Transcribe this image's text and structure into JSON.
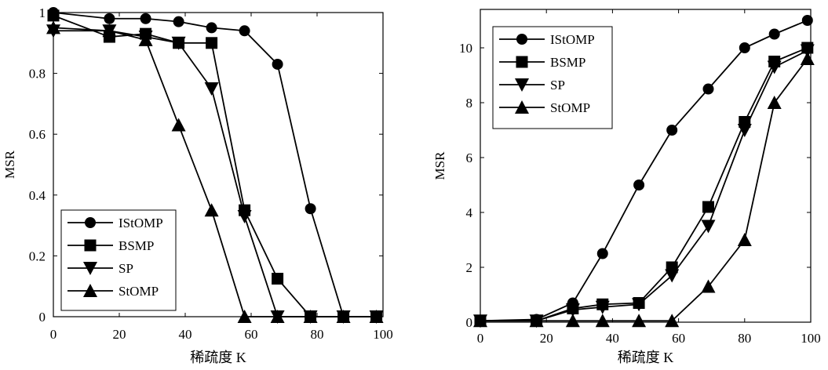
{
  "chart_data": [
    {
      "type": "line",
      "x": [
        0,
        17,
        28,
        38,
        48,
        58,
        68,
        78,
        88,
        98
      ],
      "xlabel": "稀疏度 K",
      "ylabel": "MSR",
      "xlim": [
        0,
        100
      ],
      "ylim": [
        0,
        1
      ],
      "xticks": [
        "0",
        "20",
        "40",
        "60",
        "80",
        "100"
      ],
      "yticks": [
        "0",
        "0.2",
        "0.4",
        "0.6",
        "0.8",
        "1"
      ],
      "grid": false,
      "legend_position": "bottom-left",
      "series": [
        {
          "name": "IStOMP",
          "marker": "circle",
          "values": [
            1.0,
            0.98,
            0.98,
            0.97,
            0.95,
            0.94,
            0.83,
            0.355,
            0,
            0
          ]
        },
        {
          "name": "BSMP",
          "marker": "square",
          "values": [
            0.99,
            0.92,
            0.93,
            0.9,
            0.9,
            0.35,
            0.125,
            0,
            0,
            0
          ]
        },
        {
          "name": "SP",
          "marker": "triangle-down",
          "values": [
            0.94,
            0.94,
            0.92,
            0.9,
            0.75,
            0.33,
            0,
            0,
            0,
            0
          ]
        },
        {
          "name": "StOMP",
          "marker": "triangle-up",
          "values": [
            0.95,
            0.94,
            0.91,
            0.63,
            0.35,
            0,
            0,
            0,
            0,
            0
          ]
        }
      ]
    },
    {
      "type": "line",
      "x": [
        0,
        17,
        28,
        37,
        48,
        58,
        69,
        80,
        89,
        99
      ],
      "xlabel": "稀疏度 K",
      "ylabel": "MSR",
      "xlim": [
        0,
        100
      ],
      "ylim": [
        0,
        11.4
      ],
      "xticks": [
        "0",
        "20",
        "40",
        "60",
        "80",
        "100"
      ],
      "yticks": [
        "0",
        "2",
        "4",
        "6",
        "8",
        "10"
      ],
      "grid": false,
      "legend_position": "top-left",
      "series": [
        {
          "name": "IStOMP",
          "marker": "circle",
          "values": [
            0.05,
            0.1,
            0.7,
            2.5,
            5.0,
            7.0,
            8.5,
            10.0,
            10.5,
            11.0
          ]
        },
        {
          "name": "BSMP",
          "marker": "square",
          "values": [
            0.05,
            0.05,
            0.5,
            0.65,
            0.7,
            2.0,
            4.2,
            7.3,
            9.5,
            10.0
          ]
        },
        {
          "name": "SP",
          "marker": "triangle-down",
          "values": [
            0.05,
            0.05,
            0.45,
            0.55,
            0.65,
            1.7,
            3.5,
            7.0,
            9.3,
            9.9
          ]
        },
        {
          "name": "StOMP",
          "marker": "triangle-up",
          "values": [
            0.05,
            0.05,
            0.05,
            0.05,
            0.05,
            0.05,
            1.3,
            3.0,
            8.0,
            9.6
          ]
        }
      ]
    }
  ]
}
